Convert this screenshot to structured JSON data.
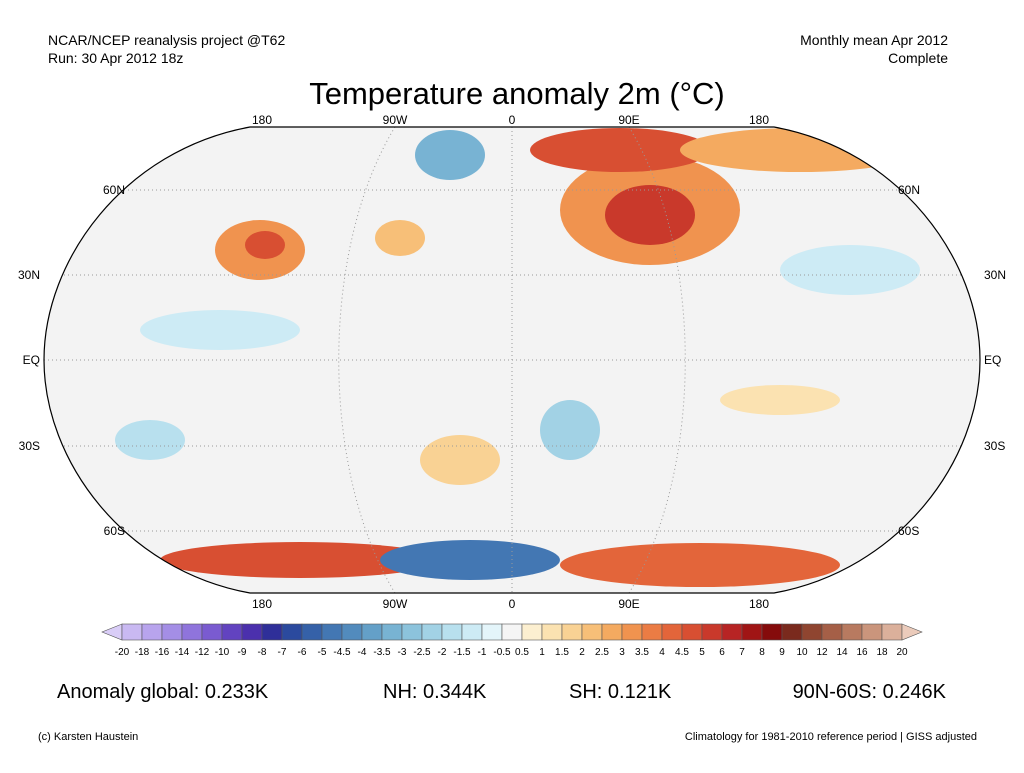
{
  "header": {
    "left_line1": "NCAR/NCEP reanalysis project @T62",
    "left_line2": "Run: 30 Apr 2012 18z",
    "right_line1": "Monthly mean Apr 2012",
    "right_line2": "Complete",
    "title": "Temperature anomaly 2m (°C)"
  },
  "map": {
    "lon_labels_top": [
      "180",
      "90W",
      "0",
      "90E",
      "180"
    ],
    "lon_labels_bottom": [
      "180",
      "90W",
      "0",
      "90E",
      "180"
    ],
    "lat_labels": [
      "60N",
      "30N",
      "EQ",
      "30S",
      "60S"
    ]
  },
  "colorbar": {
    "labels": [
      "-20",
      "-18",
      "-16",
      "-14",
      "-12",
      "-10",
      "-9",
      "-8",
      "-7",
      "-6",
      "-5",
      "-4.5",
      "-4",
      "-3.5",
      "-3",
      "-2.5",
      "-2",
      "-1.5",
      "-1",
      "-0.5",
      "0.5",
      "1",
      "1.5",
      "2",
      "2.5",
      "3",
      "3.5",
      "4",
      "4.5",
      "5",
      "6",
      "7",
      "8",
      "9",
      "10",
      "12",
      "14",
      "16",
      "18",
      "20"
    ],
    "colors": [
      "#d9cdf7",
      "#c9b9f2",
      "#b8a4ed",
      "#a48ee6",
      "#8f74dc",
      "#7a5bd0",
      "#6243c0",
      "#4b30ad",
      "#2f2f99",
      "#2b4a9e",
      "#3561a8",
      "#4377b3",
      "#528bbd",
      "#64a0c8",
      "#78b3d3",
      "#8cc3dc",
      "#a2d2e5",
      "#b8e0ee",
      "#cdebf5",
      "#e4f5fa",
      "#f5f5f5",
      "#fcefd0",
      "#fbe2b1",
      "#f9d294",
      "#f7bf78",
      "#f4aa60",
      "#f0934f",
      "#eb7c44",
      "#e3653a",
      "#d84f32",
      "#c9392b",
      "#b72424",
      "#a01515",
      "#850b0b",
      "#7a2a1d",
      "#8f4530",
      "#a55f47",
      "#b87a60",
      "#ca957c",
      "#dbb09b",
      "#ebcbbb"
    ]
  },
  "stats": {
    "global": "Anomaly global: 0.233K",
    "nh": "NH: 0.344K",
    "sh": "SH: 0.121K",
    "band": "90N-60S: 0.246K"
  },
  "footer": {
    "left": "(c) Karsten Haustein",
    "right": "Climatology for 1981-2010 reference period | GISS adjusted"
  }
}
